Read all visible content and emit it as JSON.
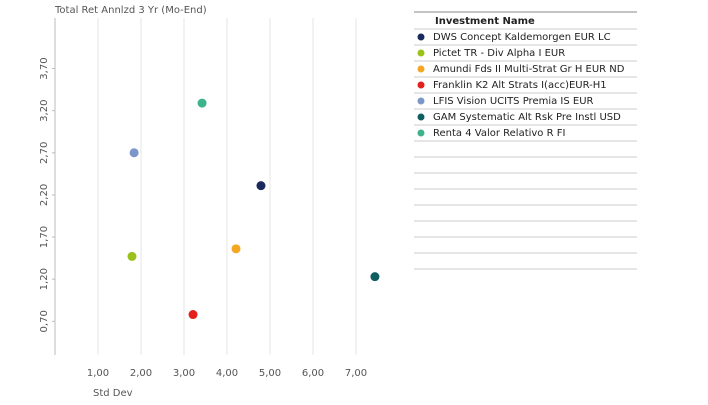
{
  "chart_data": {
    "type": "scatter",
    "y_label": "Total Ret Annlzd 3 Yr (Mo-End)",
    "x_label": "Std Dev",
    "legend_title": "Investment Name",
    "xlim": [
      0,
      8
    ],
    "ylim": [
      0.3,
      4.3
    ],
    "xticks": [
      {
        "value": 1,
        "label": "1,00"
      },
      {
        "value": 2,
        "label": "2,00"
      },
      {
        "value": 3,
        "label": "3,00"
      },
      {
        "value": 4,
        "label": "4,00"
      },
      {
        "value": 5,
        "label": "5,00"
      },
      {
        "value": 6,
        "label": "6,00"
      },
      {
        "value": 7,
        "label": "7,00"
      }
    ],
    "yticks": [
      {
        "value": 0.7,
        "label": "0,70"
      },
      {
        "value": 1.2,
        "label": "1,20"
      },
      {
        "value": 1.7,
        "label": "1,70"
      },
      {
        "value": 2.2,
        "label": "2,20"
      },
      {
        "value": 2.7,
        "label": "2,70"
      },
      {
        "value": 3.2,
        "label": "3,20"
      },
      {
        "value": 3.7,
        "label": "3,70"
      }
    ],
    "grid": "x",
    "legend_position": "right",
    "series": [
      {
        "name": "DWS Concept Kaldemorgen EUR LC",
        "color": "#1b2a5e",
        "x": [
          4.79
        ],
        "values": [
          2.31
        ]
      },
      {
        "name": "Pictet TR - Div Alpha I EUR",
        "color": "#9bc21a",
        "x": [
          1.79
        ],
        "values": [
          1.47
        ]
      },
      {
        "name": "Amundi Fds II Multi-Strat Gr H EUR ND",
        "color": "#f5a623",
        "x": [
          4.21
        ],
        "values": [
          1.56
        ]
      },
      {
        "name": "Franklin K2 Alt Strats I(acc)EUR-H1",
        "color": "#e3201b",
        "x": [
          3.21
        ],
        "values": [
          0.78
        ]
      },
      {
        "name": "LFIS Vision UCITS Premia IS EUR",
        "color": "#7b96c8",
        "x": [
          1.84
        ],
        "values": [
          2.7
        ]
      },
      {
        "name": "GAM Systematic Alt Rsk Pre Instl USD",
        "color": "#0f5f62",
        "x": [
          7.44
        ],
        "values": [
          1.23
        ]
      },
      {
        "name": "Renta 4 Valor Relativo R FI",
        "color": "#3db38c",
        "x": [
          3.42
        ],
        "values": [
          3.29
        ]
      }
    ]
  }
}
